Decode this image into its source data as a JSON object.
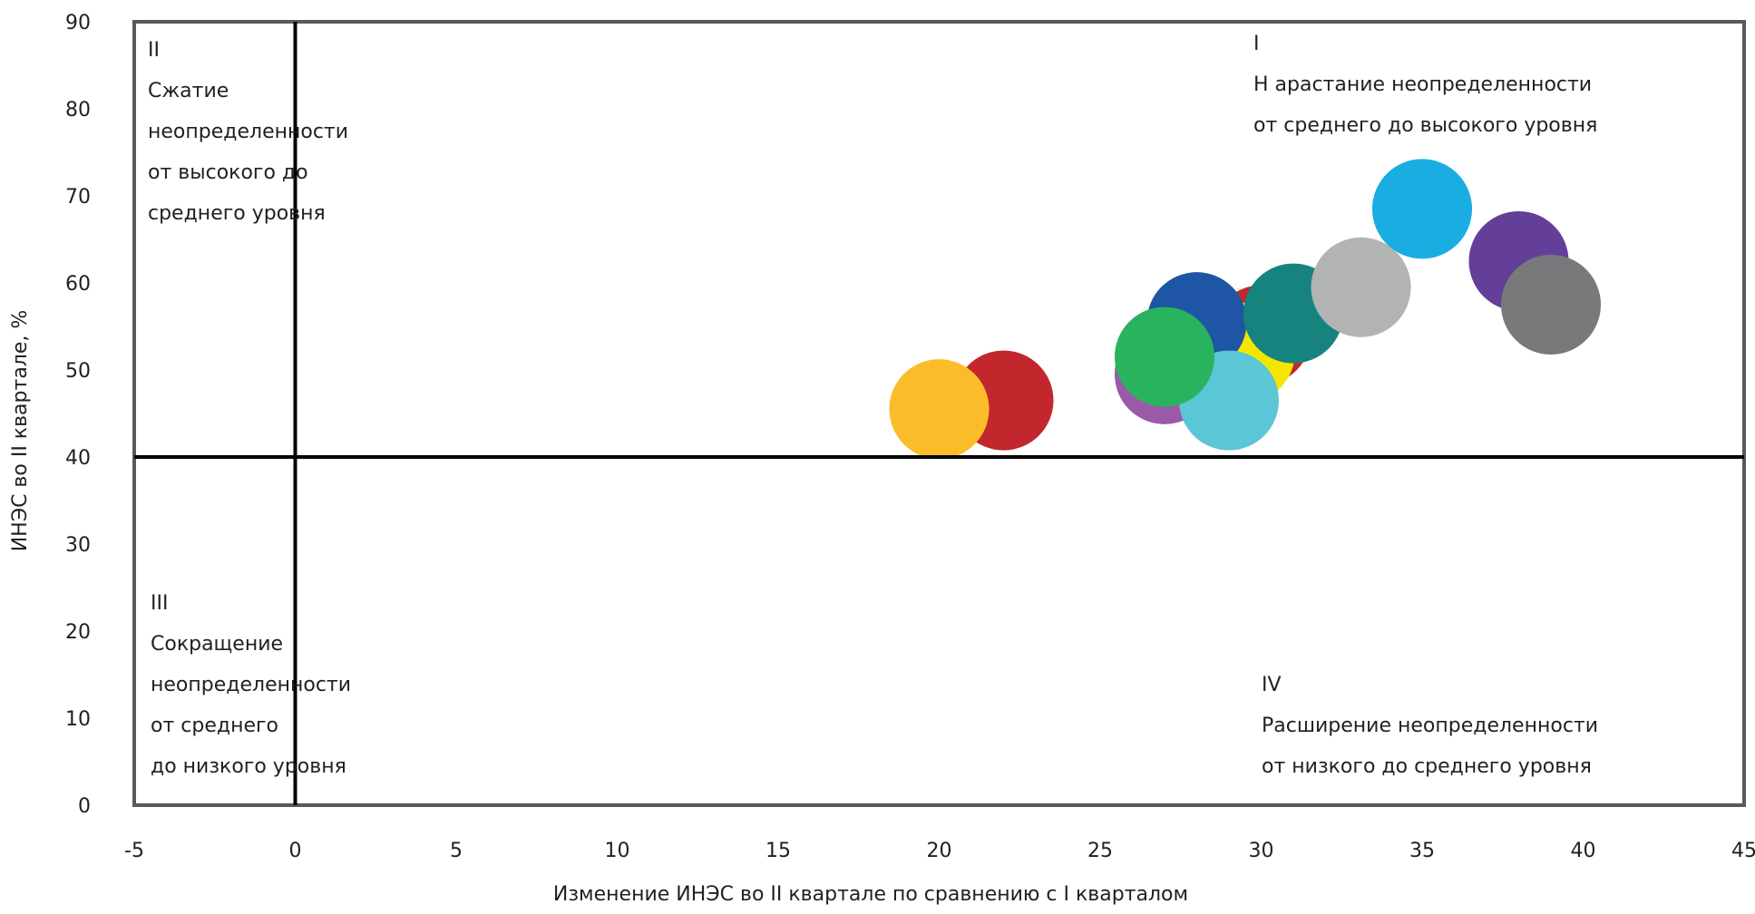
{
  "chart_data": {
    "type": "scatter",
    "title": "",
    "xlabel": "Изменение ИНЭС во  II квартале по сравнению с I кварталом",
    "ylabel": "ИНЭС во II квартале, %",
    "xlim": [
      -5,
      45
    ],
    "ylim": [
      0,
      90
    ],
    "x_ticks": [
      -5,
      0,
      5,
      10,
      15,
      20,
      25,
      30,
      35,
      40,
      45
    ],
    "y_ticks": [
      0,
      10,
      20,
      30,
      40,
      50,
      60,
      70,
      80,
      90
    ],
    "x_tick_labels": [
      "-5",
      "0",
      "5",
      "10",
      "15",
      "20",
      "25",
      "30",
      "35",
      "40",
      "45"
    ],
    "y_tick_labels": [
      "0",
      "10",
      "20",
      "30",
      "40",
      "50",
      "60",
      "70",
      "80",
      "90"
    ],
    "grid": false,
    "legend": "none",
    "divider_x": 0,
    "divider_y": 40,
    "point_radius_units": 1.55,
    "points": [
      {
        "x": 22,
        "y": 46.5,
        "color": "#c1272d"
      },
      {
        "x": 20,
        "y": 45.5,
        "color": "#fbbc2a"
      },
      {
        "x": 30,
        "y": 54,
        "color": "#c1272d"
      },
      {
        "x": 29.5,
        "y": 52,
        "color": "#f5e600"
      },
      {
        "x": 28,
        "y": 55.5,
        "color": "#1f55a5"
      },
      {
        "x": 27,
        "y": 49.5,
        "color": "#9b59a8"
      },
      {
        "x": 29,
        "y": 46.5,
        "color": "#5bc6d6"
      },
      {
        "x": 27,
        "y": 51.5,
        "color": "#2ab35e"
      },
      {
        "x": 31,
        "y": 56.5,
        "color": "#16837e"
      },
      {
        "x": 33.1,
        "y": 59.5,
        "color": "#b2b4b3"
      },
      {
        "x": 35,
        "y": 68.5,
        "color": "#19ade2"
      },
      {
        "x": 38,
        "y": 62.5,
        "color": "#633f99"
      },
      {
        "x": 39,
        "y": 57.5,
        "color": "#77797b"
      }
    ],
    "quadrants": {
      "q1": {
        "lines": [
          "I",
          "Н арастание неопределенности",
          "от среднего до высокого уровня"
        ]
      },
      "q2": {
        "lines": [
          "II",
          "Сжатие",
          "неопределенности",
          "от высокого до",
          "среднего уровня"
        ]
      },
      "q3": {
        "lines": [
          "III",
          "Сокращение",
          "неопределенности",
          "от среднего",
          "до низкого уровня"
        ]
      },
      "q4": {
        "lines": [
          "IV",
          "Расширение  неопределенности",
          "от низкого до среднего уровня"
        ]
      }
    }
  }
}
